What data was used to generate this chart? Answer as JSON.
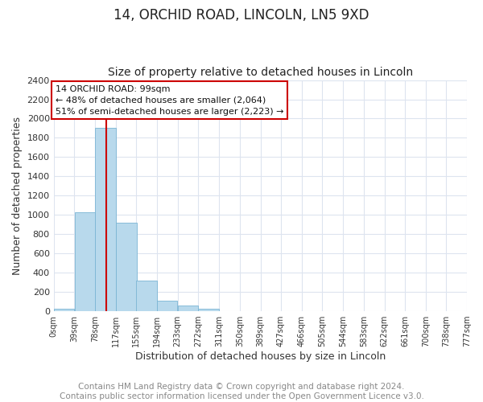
{
  "title": "14, ORCHID ROAD, LINCOLN, LN5 9XD",
  "subtitle": "Size of property relative to detached houses in Lincoln",
  "bar_values": [
    25,
    1025,
    1900,
    920,
    320,
    110,
    55,
    25,
    0,
    0,
    0,
    0,
    0,
    0,
    0,
    0,
    0,
    0,
    0,
    0
  ],
  "bin_edges": [
    0,
    39,
    78,
    117,
    155,
    194,
    233,
    272,
    311,
    350,
    389,
    427,
    466,
    505,
    544,
    583,
    622,
    661,
    700,
    738,
    777
  ],
  "x_tick_labels": [
    "0sqm",
    "39sqm",
    "78sqm",
    "117sqm",
    "155sqm",
    "194sqm",
    "233sqm",
    "272sqm",
    "311sqm",
    "350sqm",
    "389sqm",
    "427sqm",
    "466sqm",
    "505sqm",
    "544sqm",
    "583sqm",
    "622sqm",
    "661sqm",
    "700sqm",
    "738sqm",
    "777sqm"
  ],
  "ylabel": "Number of detached properties",
  "xlabel": "Distribution of detached houses by size in Lincoln",
  "ylim": [
    0,
    2400
  ],
  "yticks": [
    0,
    200,
    400,
    600,
    800,
    1000,
    1200,
    1400,
    1600,
    1800,
    2000,
    2200,
    2400
  ],
  "bar_color": "#b8d9ec",
  "bar_edge_color": "#7ab5d4",
  "vline_x": 99,
  "vline_color": "#cc0000",
  "annotation_text": "14 ORCHID ROAD: 99sqm\n← 48% of detached houses are smaller (2,064)\n51% of semi-detached houses are larger (2,223) →",
  "annotation_box_color": "#ffffff",
  "annotation_box_edge": "#cc0000",
  "footer_text": "Contains HM Land Registry data © Crown copyright and database right 2024.\nContains public sector information licensed under the Open Government Licence v3.0.",
  "title_fontsize": 12,
  "subtitle_fontsize": 10,
  "footer_fontsize": 7.5,
  "grid_color": "#dde4ef"
}
